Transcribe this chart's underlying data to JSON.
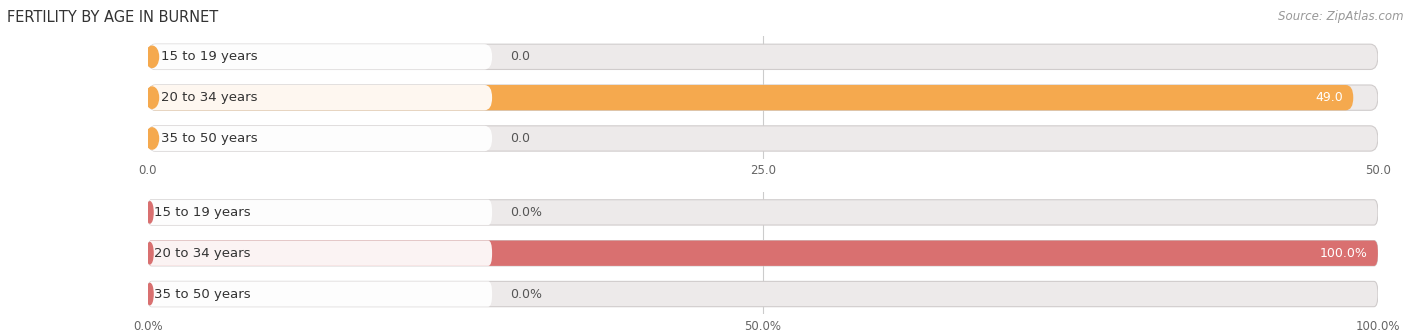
{
  "title": "FERTILITY BY AGE IN BURNET",
  "source": "Source: ZipAtlas.com",
  "top_chart": {
    "categories": [
      "15 to 19 years",
      "20 to 34 years",
      "35 to 50 years"
    ],
    "values": [
      0.0,
      49.0,
      0.0
    ],
    "xlim": [
      0,
      50.0
    ],
    "xticks": [
      0.0,
      25.0,
      50.0
    ],
    "xtick_labels": [
      "0.0",
      "25.0",
      "50.0"
    ],
    "bar_color": "#F5A94E",
    "bg_color": "#EDEAEA",
    "bg_bar_outline": "#D8D4D4",
    "label_bg_color": "#FFFFFF"
  },
  "bottom_chart": {
    "categories": [
      "15 to 19 years",
      "20 to 34 years",
      "35 to 50 years"
    ],
    "values": [
      0.0,
      100.0,
      0.0
    ],
    "xlim": [
      0,
      100.0
    ],
    "xticks": [
      0.0,
      50.0,
      100.0
    ],
    "xtick_labels": [
      "0.0%",
      "50.0%",
      "100.0%"
    ],
    "bar_color": "#D97070",
    "bg_color": "#EDEAEA",
    "bg_bar_outline": "#D8D4D4",
    "label_bg_color": "#FFFFFF"
  },
  "label_fontsize": 9.5,
  "title_fontsize": 10.5,
  "source_fontsize": 8.5,
  "tick_fontsize": 8.5,
  "value_fontsize": 9.0,
  "bar_height": 0.62,
  "background_color": "#FFFFFF",
  "grid_color": "#CCCCCC"
}
